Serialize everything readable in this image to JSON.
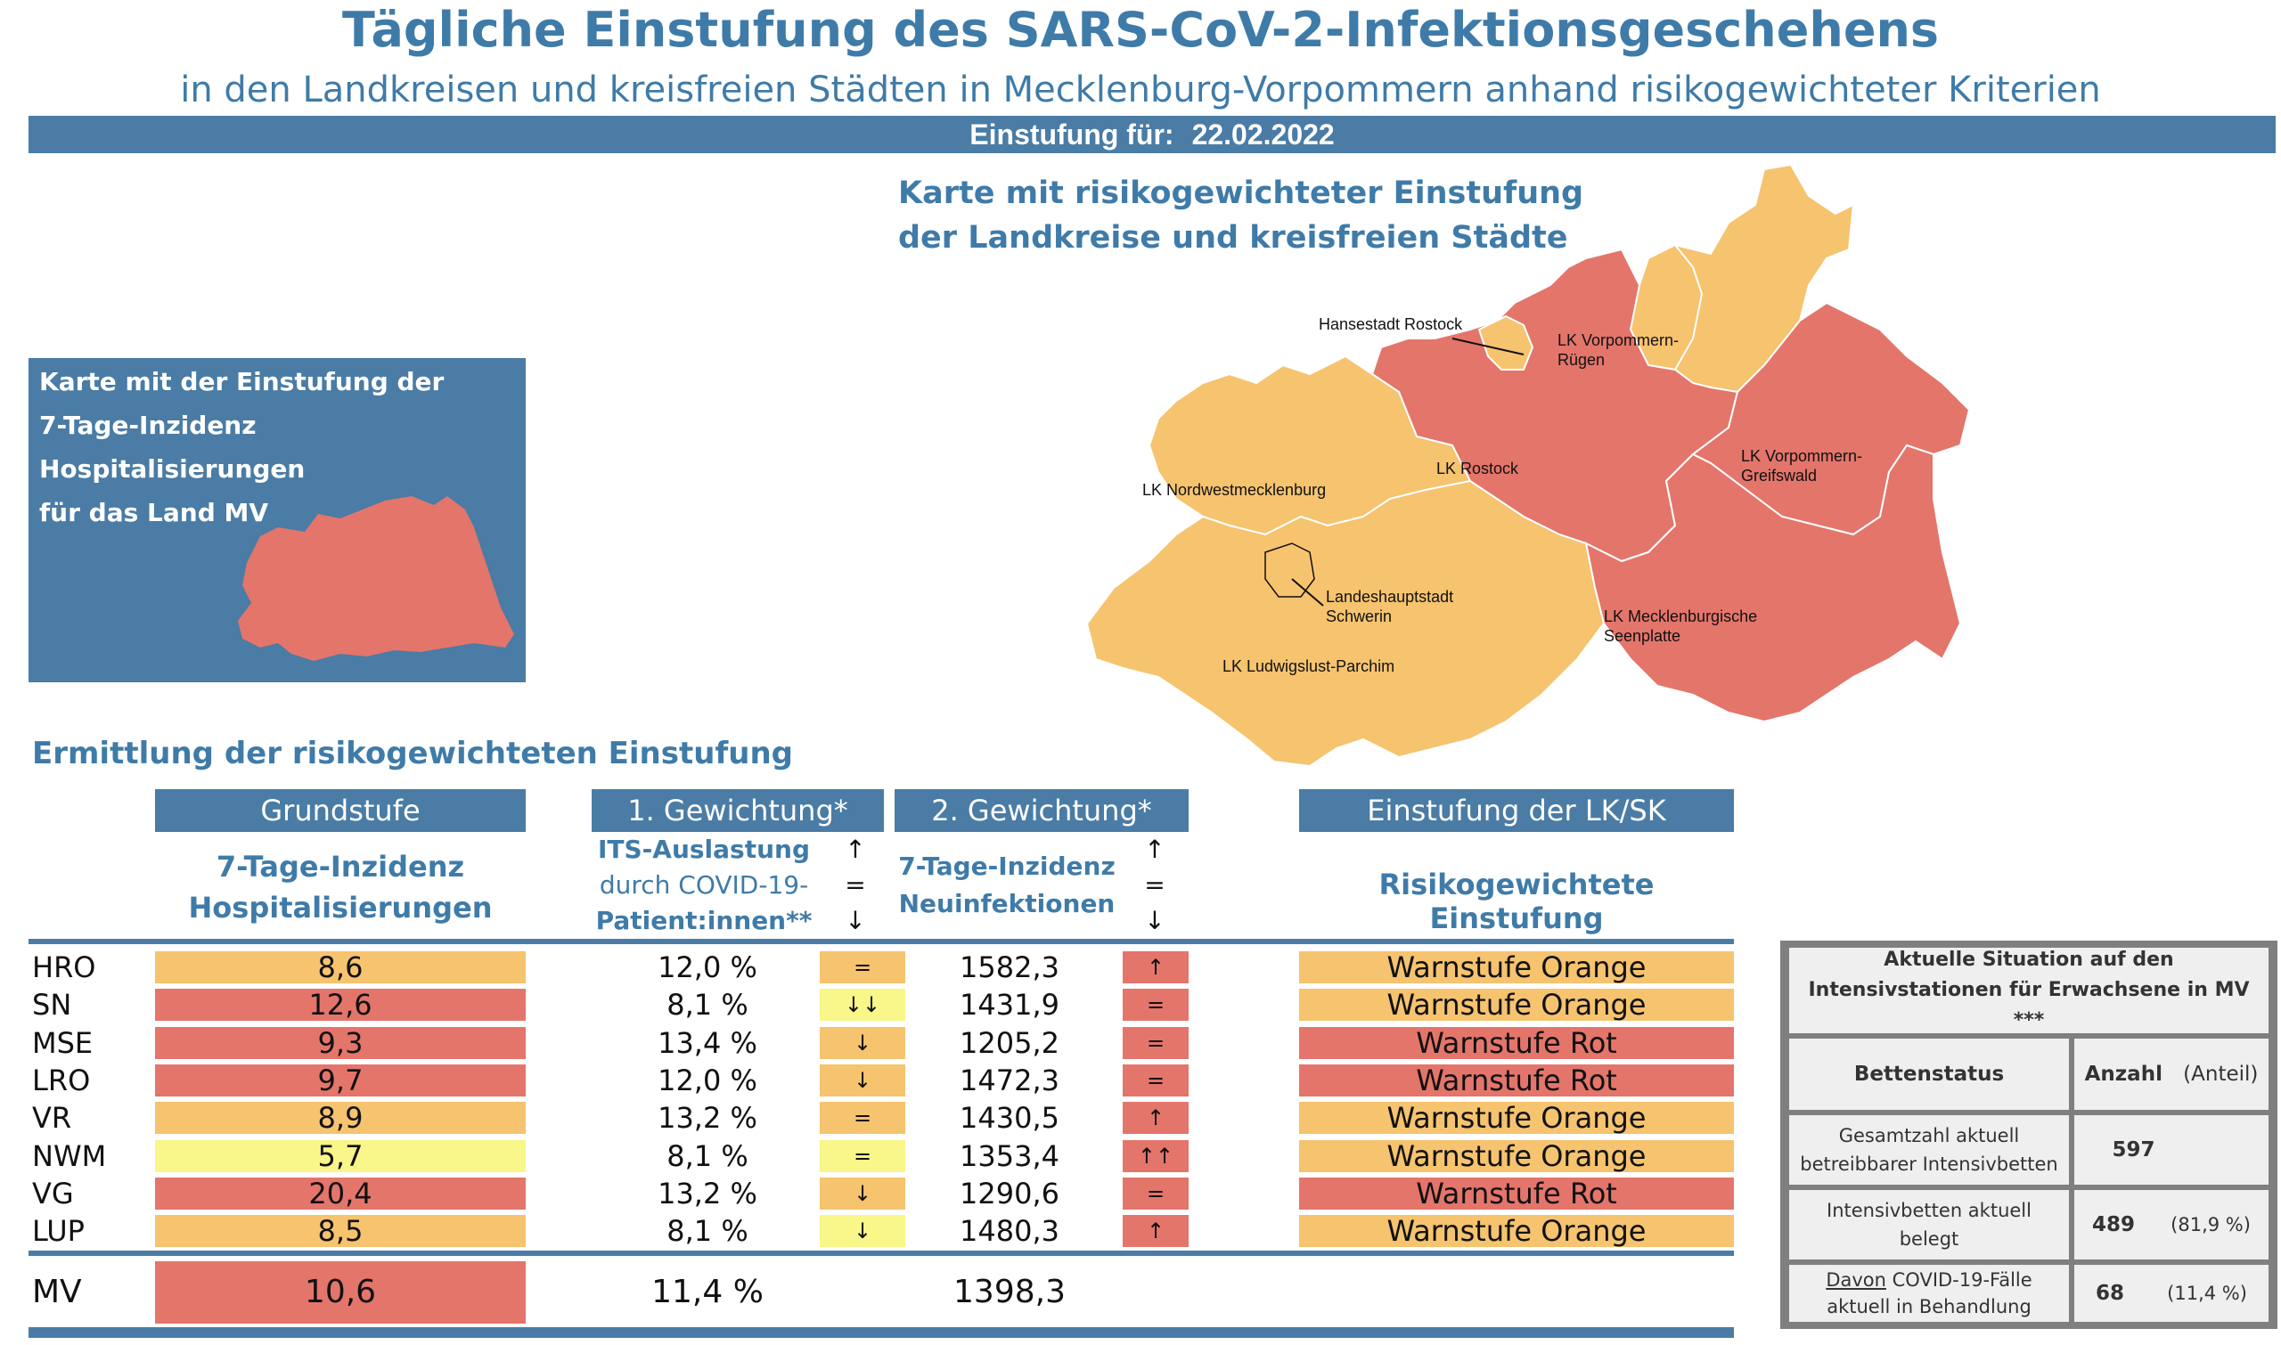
{
  "header": {
    "title": "Tägliche Einstufung des SARS-CoV-2-Infektionsgeschehens",
    "subtitle": "in den Landkreisen und kreisfreien Städten in Mecklenburg-Vorpommern anhand risikogewichteter Kriterien",
    "date_label": "Einstufung für:",
    "date_value": "22.02.2022"
  },
  "map": {
    "title_line1": "Karte mit risikogewichteter Einstufung",
    "title_line2": "der Landkreise und kreisfreien Städte",
    "labels": {
      "rostock_city": "Hansestadt Rostock",
      "vr_1": "LK Vorpommern-",
      "vr_2": "Rügen",
      "lro": "LK Rostock",
      "vg_1": "LK Vorpommern-",
      "vg_2": "Greifswald",
      "nwm": "LK Nordwestmecklenburg",
      "sn_1": "Landeshauptstadt",
      "sn_2": "Schwerin",
      "mse_1": "LK Mecklenburgische",
      "mse_2": "Seenplatte",
      "lup": "LK Ludwigslust-Parchim"
    }
  },
  "mv_box": {
    "line1": "Karte mit der Einstufung der",
    "line2": "7-Tage-Inzidenz Hospitalisierungen",
    "line3": "für das Land MV"
  },
  "section_title": "Ermittlung der risikogewichteten Einstufung",
  "columns": {
    "grundstufe": "Grundstufe",
    "gew1": "1. Gewichtung*",
    "gew2": "2. Gewichtung*",
    "einstufung": "Einstufung der LK/SK",
    "grund_sub1": "7-Tage-Inzidenz",
    "grund_sub2": "Hospitalisierungen",
    "gew1_sub1": "ITS-Auslastung",
    "gew1_sub2": "durch COVID-19-",
    "gew1_sub3": "Patient:innen**",
    "gew2_sub1": "7-Tage-Inzidenz",
    "gew2_sub2": "Neuinfektionen",
    "ein_sub": "Risikogewichtete Einstufung",
    "arrow_up": "↑",
    "arrow_eq": "=",
    "arrow_down": "↓"
  },
  "colors": {
    "orange": "#f6c36f",
    "red": "#e4756b",
    "yellow": "#f9f68a",
    "blue": "#4a7ca5"
  },
  "rows": [
    {
      "id": "HRO",
      "inc": "8,6",
      "inc_color": "orange",
      "its": "12,0 %",
      "its_trend": "=",
      "its_color": "orange",
      "neu": "1582,3",
      "neu_trend": "↑",
      "neu_color": "red",
      "ein": "Warnstufe Orange",
      "ein_color": "orange"
    },
    {
      "id": "SN",
      "inc": "12,6",
      "inc_color": "red",
      "its": "8,1 %",
      "its_trend": "↓↓",
      "its_color": "yellow",
      "neu": "1431,9",
      "neu_trend": "=",
      "neu_color": "red",
      "ein": "Warnstufe Orange",
      "ein_color": "orange"
    },
    {
      "id": "MSE",
      "inc": "9,3",
      "inc_color": "red",
      "its": "13,4 %",
      "its_trend": "↓",
      "its_color": "orange",
      "neu": "1205,2",
      "neu_trend": "=",
      "neu_color": "red",
      "ein": "Warnstufe Rot",
      "ein_color": "red"
    },
    {
      "id": "LRO",
      "inc": "9,7",
      "inc_color": "red",
      "its": "12,0 %",
      "its_trend": "↓",
      "its_color": "orange",
      "neu": "1472,3",
      "neu_trend": "=",
      "neu_color": "red",
      "ein": "Warnstufe Rot",
      "ein_color": "red"
    },
    {
      "id": "VR",
      "inc": "8,9",
      "inc_color": "orange",
      "its": "13,2 %",
      "its_trend": "=",
      "its_color": "orange",
      "neu": "1430,5",
      "neu_trend": "↑",
      "neu_color": "red",
      "ein": "Warnstufe Orange",
      "ein_color": "orange"
    },
    {
      "id": "NWM",
      "inc": "5,7",
      "inc_color": "yellow",
      "its": "8,1 %",
      "its_trend": "=",
      "its_color": "yellow",
      "neu": "1353,4",
      "neu_trend": "↑↑",
      "neu_color": "red",
      "ein": "Warnstufe Orange",
      "ein_color": "orange"
    },
    {
      "id": "VG",
      "inc": "20,4",
      "inc_color": "red",
      "its": "13,2 %",
      "its_trend": "↓",
      "its_color": "orange",
      "neu": "1290,6",
      "neu_trend": "=",
      "neu_color": "red",
      "ein": "Warnstufe Rot",
      "ein_color": "red"
    },
    {
      "id": "LUP",
      "inc": "8,5",
      "inc_color": "orange",
      "its": "8,1 %",
      "its_trend": "↓",
      "its_color": "yellow",
      "neu": "1480,3",
      "neu_trend": "↑",
      "neu_color": "red",
      "ein": "Warnstufe Orange",
      "ein_color": "orange"
    }
  ],
  "total": {
    "id": "MV",
    "inc": "10,6",
    "its": "11,4 %",
    "neu": "1398,3"
  },
  "icu": {
    "title": "Aktuelle Situation auf den Intensivstationen für Erwachsene in MV ***",
    "col_status": "Bettenstatus",
    "col_count": "Anzahl",
    "col_share": "(Anteil)",
    "r1_label": "Gesamtzahl aktuell betreibbarer Intensivbetten",
    "r1_count": "597",
    "r1_share": "",
    "r2_label": "Intensivbetten aktuell belegt",
    "r2_count": "489",
    "r2_share": "(81,9 %)",
    "r3_label_u": "Davon",
    "r3_label": " COVID-19-Fälle aktuell in Behandlung",
    "r3_count": "68",
    "r3_share": "(11,4 %)"
  }
}
